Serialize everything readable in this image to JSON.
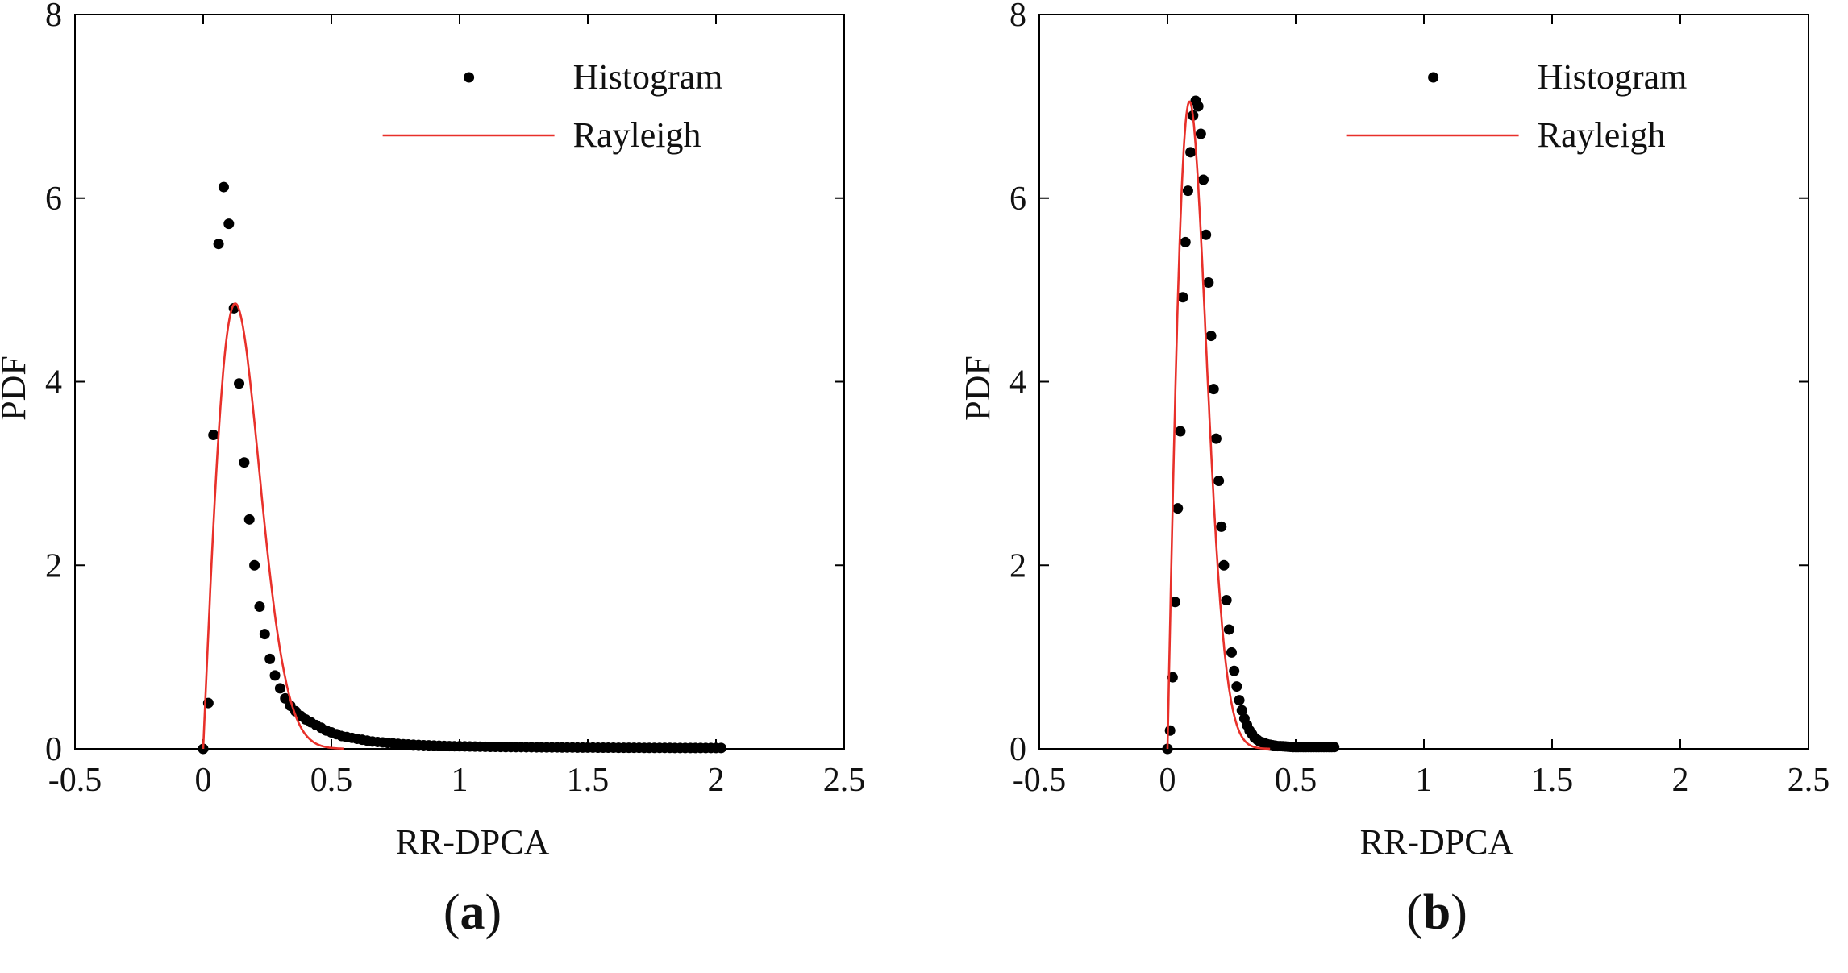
{
  "chart_data": [
    {
      "type": "scatter+line",
      "panel_label": "a",
      "xlabel": "RR-DPCA",
      "ylabel": "PDF",
      "xlim": [
        -0.5,
        2.5
      ],
      "ylim": [
        0,
        8
      ],
      "xticks": [
        -0.5,
        0,
        0.5,
        1,
        1.5,
        2,
        2.5
      ],
      "xtick_labels": [
        "-0.5",
        "0",
        "0.5",
        "1",
        "1.5",
        "2",
        "2.5"
      ],
      "yticks": [
        0,
        2,
        4,
        6,
        8
      ],
      "ytick_labels": [
        "0",
        "2",
        "4",
        "6",
        "8"
      ],
      "legend": {
        "position": "top-right",
        "entries": [
          "Histogram",
          "Rayleigh"
        ]
      },
      "series": [
        {
          "name": "Histogram",
          "kind": "markers",
          "color": "#000000",
          "points": [
            [
              0.0,
              0.0
            ],
            [
              0.02,
              0.5
            ],
            [
              0.04,
              3.42
            ],
            [
              0.06,
              5.5
            ],
            [
              0.08,
              6.12
            ],
            [
              0.1,
              5.72
            ],
            [
              0.12,
              4.8
            ],
            [
              0.14,
              3.98
            ],
            [
              0.16,
              3.12
            ],
            [
              0.18,
              2.5
            ],
            [
              0.2,
              2.0
            ],
            [
              0.22,
              1.55
            ],
            [
              0.24,
              1.25
            ],
            [
              0.26,
              0.98
            ],
            [
              0.28,
              0.8
            ],
            [
              0.3,
              0.66
            ],
            [
              0.32,
              0.55
            ],
            [
              0.34,
              0.47
            ],
            [
              0.36,
              0.41
            ],
            [
              0.38,
              0.36
            ],
            [
              0.4,
              0.32
            ],
            [
              0.42,
              0.29
            ],
            [
              0.44,
              0.26
            ],
            [
              0.46,
              0.23
            ],
            [
              0.48,
              0.2
            ],
            [
              0.5,
              0.18
            ],
            [
              0.52,
              0.16
            ],
            [
              0.54,
              0.14
            ],
            [
              0.56,
              0.13
            ],
            [
              0.58,
              0.12
            ],
            [
              0.6,
              0.11
            ],
            [
              0.62,
              0.1
            ],
            [
              0.64,
              0.09
            ],
            [
              0.66,
              0.08
            ],
            [
              0.68,
              0.075
            ],
            [
              0.7,
              0.07
            ],
            [
              0.72,
              0.065
            ],
            [
              0.74,
              0.06
            ],
            [
              0.76,
              0.055
            ],
            [
              0.78,
              0.05
            ],
            [
              0.8,
              0.048
            ],
            [
              0.82,
              0.045
            ],
            [
              0.84,
              0.043
            ],
            [
              0.86,
              0.04
            ],
            [
              0.88,
              0.038
            ],
            [
              0.9,
              0.036
            ],
            [
              0.92,
              0.034
            ],
            [
              0.94,
              0.032
            ],
            [
              0.96,
              0.03
            ],
            [
              0.98,
              0.029
            ],
            [
              1.0,
              0.028
            ],
            [
              1.02,
              0.027
            ],
            [
              1.04,
              0.026
            ],
            [
              1.06,
              0.025
            ],
            [
              1.08,
              0.024
            ],
            [
              1.1,
              0.023
            ],
            [
              1.12,
              0.022
            ],
            [
              1.14,
              0.022
            ],
            [
              1.16,
              0.021
            ],
            [
              1.18,
              0.02
            ],
            [
              1.2,
              0.02
            ],
            [
              1.22,
              0.019
            ],
            [
              1.24,
              0.019
            ],
            [
              1.26,
              0.018
            ],
            [
              1.28,
              0.018
            ],
            [
              1.3,
              0.017
            ],
            [
              1.32,
              0.017
            ],
            [
              1.34,
              0.016
            ],
            [
              1.36,
              0.016
            ],
            [
              1.38,
              0.016
            ],
            [
              1.4,
              0.015
            ],
            [
              1.42,
              0.015
            ],
            [
              1.44,
              0.015
            ],
            [
              1.46,
              0.014
            ],
            [
              1.48,
              0.014
            ],
            [
              1.5,
              0.014
            ],
            [
              1.52,
              0.014
            ],
            [
              1.54,
              0.013
            ],
            [
              1.56,
              0.013
            ],
            [
              1.58,
              0.013
            ],
            [
              1.6,
              0.013
            ],
            [
              1.62,
              0.012
            ],
            [
              1.64,
              0.012
            ],
            [
              1.66,
              0.012
            ],
            [
              1.68,
              0.012
            ],
            [
              1.7,
              0.012
            ],
            [
              1.72,
              0.011
            ],
            [
              1.74,
              0.011
            ],
            [
              1.76,
              0.011
            ],
            [
              1.78,
              0.011
            ],
            [
              1.8,
              0.011
            ],
            [
              1.82,
              0.011
            ],
            [
              1.84,
              0.01
            ],
            [
              1.86,
              0.01
            ],
            [
              1.88,
              0.01
            ],
            [
              1.9,
              0.01
            ],
            [
              1.92,
              0.01
            ],
            [
              1.94,
              0.01
            ],
            [
              1.96,
              0.01
            ],
            [
              1.98,
              0.01
            ],
            [
              2.0,
              0.01
            ],
            [
              2.02,
              0.01
            ]
          ]
        },
        {
          "name": "Rayleigh",
          "kind": "line",
          "color": "#e8302a",
          "curve": {
            "family": "rayleigh",
            "sigma": 0.125,
            "x_range": [
              0.0,
              0.55
            ]
          }
        }
      ]
    },
    {
      "type": "scatter+line",
      "panel_label": "b",
      "xlabel": "RR-DPCA",
      "ylabel": "PDF",
      "xlim": [
        -0.5,
        2.5
      ],
      "ylim": [
        0,
        8
      ],
      "xticks": [
        -0.5,
        0,
        0.5,
        1,
        1.5,
        2,
        2.5
      ],
      "xtick_labels": [
        "-0.5",
        "0",
        "0.5",
        "1",
        "1.5",
        "2",
        "2.5"
      ],
      "yticks": [
        0,
        2,
        4,
        6,
        8
      ],
      "ytick_labels": [
        "0",
        "2",
        "4",
        "6",
        "8"
      ],
      "legend": {
        "position": "top-right",
        "entries": [
          "Histogram",
          "Rayleigh"
        ]
      },
      "series": [
        {
          "name": "Histogram",
          "kind": "markers",
          "color": "#000000",
          "points": [
            [
              0.0,
              0.0
            ],
            [
              0.01,
              0.2
            ],
            [
              0.02,
              0.78
            ],
            [
              0.03,
              1.6
            ],
            [
              0.04,
              2.62
            ],
            [
              0.05,
              3.46
            ],
            [
              0.06,
              4.92
            ],
            [
              0.07,
              5.52
            ],
            [
              0.08,
              6.08
            ],
            [
              0.09,
              6.5
            ],
            [
              0.1,
              6.9
            ],
            [
              0.11,
              7.06
            ],
            [
              0.12,
              7.0
            ],
            [
              0.13,
              6.7
            ],
            [
              0.14,
              6.2
            ],
            [
              0.15,
              5.6
            ],
            [
              0.16,
              5.08
            ],
            [
              0.17,
              4.5
            ],
            [
              0.18,
              3.92
            ],
            [
              0.19,
              3.38
            ],
            [
              0.2,
              2.92
            ],
            [
              0.21,
              2.42
            ],
            [
              0.22,
              2.0
            ],
            [
              0.23,
              1.62
            ],
            [
              0.24,
              1.3
            ],
            [
              0.25,
              1.05
            ],
            [
              0.26,
              0.85
            ],
            [
              0.27,
              0.68
            ],
            [
              0.28,
              0.53
            ],
            [
              0.29,
              0.42
            ],
            [
              0.3,
              0.33
            ],
            [
              0.31,
              0.26
            ],
            [
              0.32,
              0.2
            ],
            [
              0.33,
              0.16
            ],
            [
              0.34,
              0.12
            ],
            [
              0.35,
              0.1
            ],
            [
              0.36,
              0.08
            ],
            [
              0.37,
              0.07
            ],
            [
              0.38,
              0.06
            ],
            [
              0.39,
              0.05
            ],
            [
              0.4,
              0.045
            ],
            [
              0.41,
              0.04
            ],
            [
              0.42,
              0.035
            ],
            [
              0.43,
              0.03
            ],
            [
              0.44,
              0.03
            ],
            [
              0.45,
              0.028
            ],
            [
              0.46,
              0.026
            ],
            [
              0.47,
              0.024
            ],
            [
              0.48,
              0.022
            ],
            [
              0.49,
              0.02
            ],
            [
              0.5,
              0.02
            ],
            [
              0.51,
              0.02
            ],
            [
              0.52,
              0.02
            ],
            [
              0.53,
              0.02
            ],
            [
              0.54,
              0.02
            ],
            [
              0.55,
              0.02
            ],
            [
              0.56,
              0.02
            ],
            [
              0.57,
              0.02
            ],
            [
              0.58,
              0.02
            ],
            [
              0.59,
              0.02
            ],
            [
              0.6,
              0.02
            ],
            [
              0.61,
              0.02
            ],
            [
              0.62,
              0.02
            ],
            [
              0.63,
              0.02
            ],
            [
              0.64,
              0.02
            ],
            [
              0.65,
              0.02
            ]
          ]
        },
        {
          "name": "Rayleigh",
          "kind": "line",
          "color": "#e8302a",
          "curve": {
            "family": "rayleigh",
            "sigma": 0.086,
            "x_range": [
              0.0,
              0.4
            ]
          }
        }
      ]
    }
  ]
}
